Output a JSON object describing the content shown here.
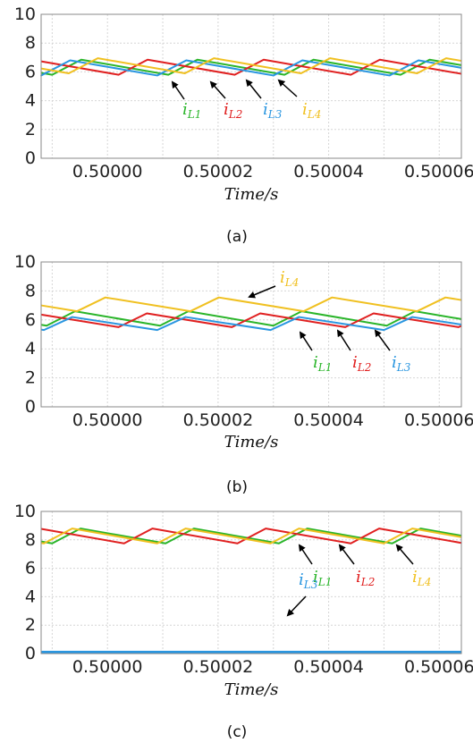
{
  "chart_data": [
    {
      "type": "line",
      "caption": "(a)",
      "xlabel": "Time/s",
      "ylabel": "",
      "xlim": [
        0.499988,
        0.500064
      ],
      "ylim": [
        0,
        10
      ],
      "x_ticks": [
        "0.50000",
        "0.50002",
        "0.50004",
        "0.50006"
      ],
      "y_ticks": [
        "0",
        "2",
        "4",
        "6",
        "8",
        "10"
      ],
      "grid": true,
      "period_s": 2.1e-05,
      "series": [
        {
          "name": "iL1",
          "color": "#2ab52a",
          "low": 5.8,
          "high": 6.85,
          "low_x": 0.49999,
          "rise_fraction": 0.25
        },
        {
          "name": "iL2",
          "color": "#e02020",
          "low": 5.8,
          "high": 6.85,
          "low_x": 0.500002,
          "rise_fraction": 0.25
        },
        {
          "name": "iL3",
          "color": "#2a96e0",
          "low": 5.75,
          "high": 6.8,
          "low_x": 0.500009,
          "rise_fraction": 0.25
        },
        {
          "name": "iL4",
          "color": "#f0c020",
          "low": 5.9,
          "high": 6.95,
          "low_x": 0.500014,
          "rise_fraction": 0.25
        }
      ]
    },
    {
      "type": "line",
      "caption": "(b)",
      "xlabel": "Time/s",
      "ylabel": "",
      "xlim": [
        0.499988,
        0.500064
      ],
      "ylim": [
        0,
        10
      ],
      "x_ticks": [
        "0.50000",
        "0.50002",
        "0.50004",
        "0.50006"
      ],
      "y_ticks": [
        "0",
        "2",
        "4",
        "6",
        "8",
        "10"
      ],
      "grid": true,
      "period_s": 2.05e-05,
      "series": [
        {
          "name": "iL1",
          "color": "#2ab52a",
          "low": 5.6,
          "high": 6.6,
          "low_x": 0.499989,
          "rise_fraction": 0.25
        },
        {
          "name": "iL2",
          "color": "#e02020",
          "low": 5.5,
          "high": 6.45,
          "low_x": 0.500002,
          "rise_fraction": 0.25
        },
        {
          "name": "iL3",
          "color": "#2a96e0",
          "low": 5.3,
          "high": 6.2,
          "low_x": 0.500009,
          "rise_fraction": 0.25
        },
        {
          "name": "iL4",
          "color": "#f0c020",
          "low": 6.6,
          "high": 7.55,
          "low_x": 0.500015,
          "rise_fraction": 0.25
        }
      ]
    },
    {
      "type": "line",
      "caption": "(c)",
      "xlabel": "Time/s",
      "ylabel": "",
      "xlim": [
        0.499988,
        0.500064
      ],
      "ylim": [
        0,
        10
      ],
      "x_ticks": [
        "0.50000",
        "0.50002",
        "0.50004",
        "0.50006"
      ],
      "y_ticks": [
        "0",
        "2",
        "4",
        "6",
        "8",
        "10"
      ],
      "grid": true,
      "period_s": 2.05e-05,
      "series": [
        {
          "name": "iL1",
          "color": "#2ab52a",
          "low": 7.75,
          "high": 8.8,
          "low_x": 0.49999,
          "rise_fraction": 0.25
        },
        {
          "name": "iL2",
          "color": "#e02020",
          "low": 7.75,
          "high": 8.8,
          "low_x": 0.500003,
          "rise_fraction": 0.25
        },
        {
          "name": "iL3",
          "color": "#2a96e0",
          "low": 0.1,
          "high": 0.1,
          "low_x": 0.499988,
          "rise_fraction": 0
        },
        {
          "name": "iL4",
          "color": "#f0c020",
          "low": 7.75,
          "high": 8.8,
          "low_x": 0.500009,
          "rise_fraction": 0.25
        }
      ]
    }
  ],
  "labels": {
    "a": [
      {
        "text": "i",
        "sub": "L1",
        "color": "#2ab52a"
      },
      {
        "text": "i",
        "sub": "L2",
        "color": "#e02020"
      },
      {
        "text": "i",
        "sub": "L3",
        "color": "#2a96e0"
      },
      {
        "text": "i",
        "sub": "L4",
        "color": "#f0c020"
      }
    ],
    "b": [
      {
        "text": "i",
        "sub": "L4",
        "color": "#f0c020"
      },
      {
        "text": "i",
        "sub": "L1",
        "color": "#2ab52a"
      },
      {
        "text": "i",
        "sub": "L2",
        "color": "#e02020"
      },
      {
        "text": "i",
        "sub": "L3",
        "color": "#2a96e0"
      }
    ],
    "c": [
      {
        "text": "i",
        "sub": "L1",
        "color": "#2ab52a"
      },
      {
        "text": "i",
        "sub": "L2",
        "color": "#e02020"
      },
      {
        "text": "i",
        "sub": "L4",
        "color": "#f0c020"
      },
      {
        "text": "i",
        "sub": "L3",
        "color": "#2a96e0"
      }
    ]
  }
}
